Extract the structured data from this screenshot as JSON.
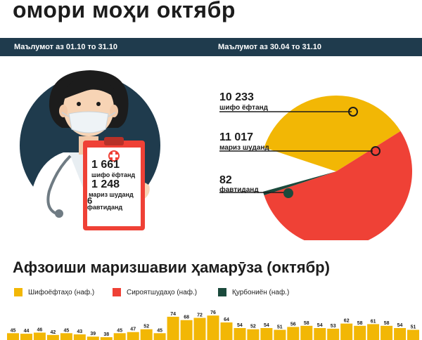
{
  "header": {
    "title": "омори моҳи октябр",
    "period_left": "Маълумот аз 01.10 то 31.10",
    "period_right": "Маълумот аз 30.04 то 31.10"
  },
  "clipboard": {
    "recovered_value": "1 661",
    "recovered_label": "шифо ёфтанд",
    "sick_value": "1 248",
    "sick_label": "мариз шуданд",
    "died_value": "6",
    "died_label": "фавтиданд"
  },
  "pie": {
    "recovered_value": "10 233",
    "recovered_label": "шифо ёфтанд",
    "sick_value": "11 017",
    "sick_label": "мариз шуданд",
    "died_value": "82",
    "died_label": "фавтиданд"
  },
  "colors": {
    "recovered": "#f2b705",
    "sick": "#ef4136",
    "died": "#1b4a3c",
    "band": "#1f3b4d"
  },
  "section": {
    "title": "Афзоиши маризшавии ҳамарӯза (октябр)"
  },
  "legend": [
    {
      "label": "Шифоёфтаҳо (наф.)",
      "color": "#f2b705"
    },
    {
      "label": "Сироятшудаҳо (наф.)",
      "color": "#ef4136"
    },
    {
      "label": "Қурбониён (наф.)",
      "color": "#1b4a3c"
    }
  ],
  "chart_data": {
    "type": "bar",
    "title": "Афзоиши маризшавии ҳамарӯза (октябр)",
    "series": [
      {
        "name": "Шифоёфтаҳо (наф.)",
        "values": [
          45,
          44,
          46,
          42,
          45,
          43,
          39,
          38,
          45,
          47,
          52,
          45,
          74,
          68,
          72,
          76,
          64,
          54,
          52,
          54,
          51,
          56,
          58,
          54,
          53,
          62,
          58,
          61,
          58,
          54,
          51
        ]
      }
    ],
    "labels": [
      "45",
      "44",
      "46",
      "42",
      "45",
      "43",
      "39",
      "38",
      "45",
      "47",
      "52",
      "45",
      "74",
      "68",
      "72",
      "76",
      "64",
      "54",
      "52",
      "54",
      "51",
      "56",
      "58",
      "54",
      "53",
      "62",
      "58",
      "61",
      "58",
      "54",
      "51"
    ]
  }
}
